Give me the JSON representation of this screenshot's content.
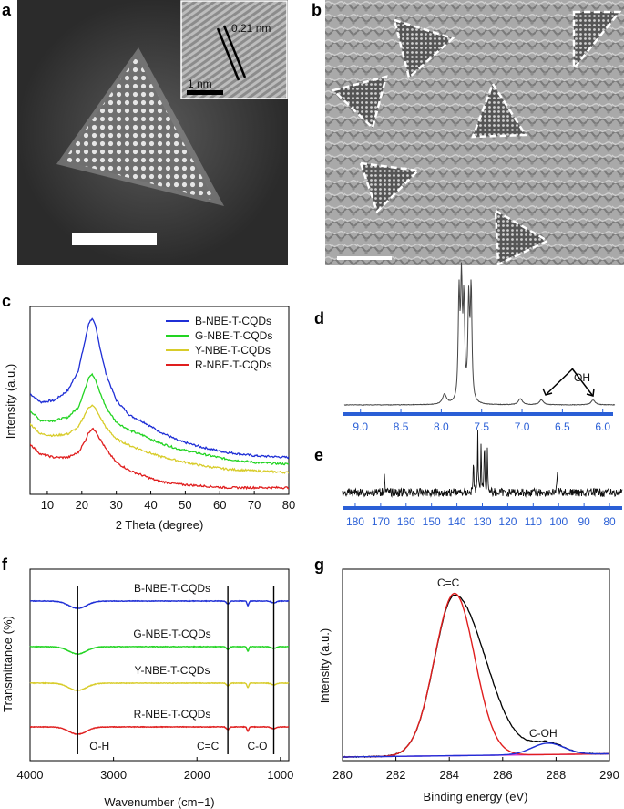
{
  "panel_labels": {
    "a": "a",
    "b": "b",
    "c": "c",
    "d": "d",
    "e": "e",
    "f": "f",
    "g": "g"
  },
  "micrographs": {
    "a_inset_spacing": "0.21 nm",
    "a_inset_scale": "1 nm"
  },
  "colors": {
    "blue": "#1f2fd6",
    "green": "#22d422",
    "yellow": "#d8cc2a",
    "red": "#e01e1e",
    "magenta": "#d42ad4",
    "nmr_axis": "#2a5fd6"
  },
  "chart_data": [
    {
      "id": "c",
      "type": "line",
      "xlabel": "2 Theta (degree)",
      "ylabel": "Intensity (a.u.)",
      "xlim": [
        5,
        80
      ],
      "xticks": [
        10,
        20,
        30,
        40,
        50,
        60,
        70,
        80
      ],
      "legend_position": "top-right",
      "x": [
        5,
        8,
        12,
        16,
        19,
        21,
        22,
        23,
        24,
        25,
        27,
        30,
        34,
        38,
        42,
        48,
        55,
        62,
        70,
        80
      ],
      "series": [
        {
          "name": "B-NBE-T-CQDs",
          "color": "#1f2fd6",
          "values": [
            0.6,
            0.55,
            0.56,
            0.62,
            0.74,
            0.92,
            1.02,
            1.05,
            1.0,
            0.9,
            0.72,
            0.56,
            0.47,
            0.43,
            0.38,
            0.32,
            0.28,
            0.25,
            0.23,
            0.22
          ]
        },
        {
          "name": "G-NBE-T-CQDs",
          "color": "#22d422",
          "values": [
            0.5,
            0.44,
            0.44,
            0.46,
            0.52,
            0.63,
            0.7,
            0.72,
            0.68,
            0.62,
            0.52,
            0.43,
            0.38,
            0.35,
            0.31,
            0.27,
            0.24,
            0.21,
            0.19,
            0.18
          ]
        },
        {
          "name": "Y-NBE-T-CQDs",
          "color": "#d8cc2a",
          "values": [
            0.42,
            0.36,
            0.35,
            0.36,
            0.4,
            0.48,
            0.52,
            0.53,
            0.51,
            0.47,
            0.4,
            0.33,
            0.29,
            0.26,
            0.23,
            0.2,
            0.17,
            0.15,
            0.14,
            0.13
          ]
        },
        {
          "name": "R-NBE-T-CQDs",
          "color": "#e01e1e",
          "values": [
            0.3,
            0.24,
            0.22,
            0.22,
            0.25,
            0.32,
            0.37,
            0.39,
            0.38,
            0.34,
            0.27,
            0.19,
            0.14,
            0.11,
            0.08,
            0.06,
            0.05,
            0.04,
            0.04,
            0.04
          ]
        }
      ]
    },
    {
      "id": "d",
      "type": "line",
      "xlim": [
        9.2,
        5.85
      ],
      "xticks": [
        9.0,
        8.5,
        8.0,
        7.5,
        7.0,
        6.5,
        6.0
      ],
      "annotation": "OH",
      "peaks": [
        {
          "ppm": 7.96,
          "height": 0.08
        },
        {
          "ppm": 7.78,
          "height": 0.85
        },
        {
          "ppm": 7.75,
          "height": 0.92
        },
        {
          "ppm": 7.72,
          "height": 0.78
        },
        {
          "ppm": 7.66,
          "height": 0.8
        },
        {
          "ppm": 7.63,
          "height": 0.9
        },
        {
          "ppm": 7.02,
          "height": 0.05
        },
        {
          "ppm": 6.76,
          "height": 0.04
        },
        {
          "ppm": 6.12,
          "height": 0.04
        }
      ]
    },
    {
      "id": "e",
      "type": "line",
      "xlim": [
        185,
        75
      ],
      "xticks": [
        180,
        170,
        160,
        150,
        140,
        130,
        120,
        110,
        100,
        90,
        80
      ],
      "peaks": [
        {
          "ppm": 168.5,
          "height": 0.35
        },
        {
          "ppm": 133.5,
          "height": 0.55
        },
        {
          "ppm": 131.8,
          "height": 0.95
        },
        {
          "ppm": 130.5,
          "height": 0.8
        },
        {
          "ppm": 129.2,
          "height": 0.88
        },
        {
          "ppm": 128.0,
          "height": 0.7
        },
        {
          "ppm": 100.5,
          "height": 0.4
        }
      ]
    },
    {
      "id": "f",
      "type": "line",
      "xlabel": "Wavenumber (cm−1)",
      "ylabel": "Transmittance (%)",
      "xlim": [
        4000,
        900
      ],
      "xticks": [
        4000,
        3000,
        2000,
        1000
      ],
      "marker_lines": [
        {
          "x": 3430,
          "label": "O-H"
        },
        {
          "x": 1630,
          "label": "C=C"
        },
        {
          "x": 1080,
          "label": "C-O"
        }
      ],
      "series": [
        {
          "name": "B-NBE-T-CQDs",
          "color": "#1f2fd6",
          "offset": 0.0
        },
        {
          "name": "G-NBE-T-CQDs",
          "color": "#22d422",
          "offset": 1.0
        },
        {
          "name": "Y-NBE-T-CQDs",
          "color": "#d8cc2a",
          "offset": 2.0
        },
        {
          "name": "R-NBE-T-CQDs",
          "color": "#e01e1e",
          "offset": 3.0
        }
      ]
    },
    {
      "id": "g",
      "type": "line",
      "xlabel": "Binding energy (eV)",
      "ylabel": "Intensity (a.u.)",
      "xlim": [
        280,
        290
      ],
      "xticks": [
        280,
        282,
        284,
        286,
        288,
        290
      ],
      "annotations": [
        "C=C",
        "C-OH"
      ],
      "components": [
        {
          "name": "C=C",
          "center": 284.2,
          "sigma": 0.75,
          "height": 1.0,
          "color": "#e01e1e"
        },
        {
          "name": "C-OH",
          "center": 287.7,
          "sigma": 0.6,
          "height": 0.07,
          "color": "#1f2fd6"
        }
      ],
      "baseline_color": "#d42ad4"
    }
  ]
}
